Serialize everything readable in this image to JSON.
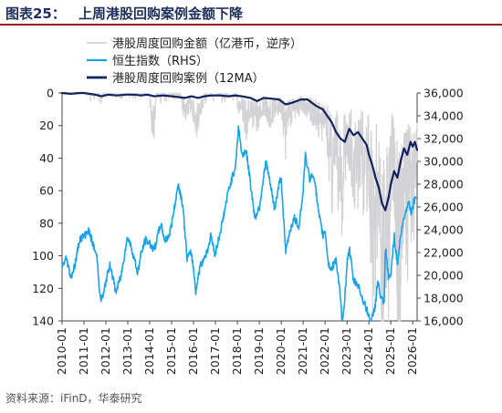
{
  "header": {
    "label": "图表25：",
    "title": "上周港股回购案例金额下降"
  },
  "source": "资料来源：iFinD，华泰研究",
  "colors": {
    "buyback": "#d3d3d6",
    "hsi": "#1aa3e8",
    "ma": "#12225e",
    "title_rule": "#9a1d23"
  },
  "chart_data": {
    "type": "line",
    "title": "上周港股回购案例金额下降",
    "legend": [
      "港股周度回购金额（亿港币，逆序）",
      "恒生指数（RHS）",
      "港股周度回购案例（12MA）"
    ],
    "legend_position": "top-right",
    "x_ticks": [
      "2010-01",
      "2011-01",
      "2012-01",
      "2013-01",
      "2014-01",
      "2015-01",
      "2016-01",
      "2017-01",
      "2018-01",
      "2019-01",
      "2020-01",
      "2021-01",
      "2022-01",
      "2023-01",
      "2024-01",
      "2025-01",
      "2026-01"
    ],
    "y_left": {
      "ticks": [
        0,
        20,
        40,
        60,
        80,
        100,
        120,
        140
      ],
      "range": [
        0,
        140
      ],
      "inverted": true
    },
    "y_right": {
      "ticks": [
        "16,000",
        "18,000",
        "20,000",
        "22,000",
        "24,000",
        "26,000",
        "28,000",
        "30,000",
        "32,000",
        "34,000",
        "36,000"
      ],
      "range": [
        16000,
        36000
      ]
    },
    "x_range": [
      2010.0,
      2026.2
    ],
    "series": [
      {
        "name": "港股周度回购金额（亿港币，逆序）",
        "axis": "left",
        "style": "spiky",
        "points": [
          [
            2010.0,
            0
          ],
          [
            2010.5,
            0
          ],
          [
            2011.0,
            0
          ],
          [
            2011.3,
            3
          ],
          [
            2011.6,
            2
          ],
          [
            2011.9,
            5
          ],
          [
            2012.2,
            2
          ],
          [
            2012.5,
            3
          ],
          [
            2012.8,
            2
          ],
          [
            2013.2,
            2
          ],
          [
            2013.5,
            3
          ],
          [
            2013.8,
            2
          ],
          [
            2014.0,
            5
          ],
          [
            2014.15,
            20
          ],
          [
            2014.3,
            4
          ],
          [
            2014.7,
            3
          ],
          [
            2015.0,
            3
          ],
          [
            2015.3,
            2
          ],
          [
            2015.5,
            8
          ],
          [
            2015.65,
            12
          ],
          [
            2015.8,
            6
          ],
          [
            2016.0,
            10
          ],
          [
            2016.1,
            18
          ],
          [
            2016.3,
            8
          ],
          [
            2016.6,
            4
          ],
          [
            2017.0,
            4
          ],
          [
            2017.4,
            3
          ],
          [
            2017.8,
            4
          ],
          [
            2018.0,
            6
          ],
          [
            2018.2,
            8
          ],
          [
            2018.4,
            16
          ],
          [
            2018.6,
            9
          ],
          [
            2018.8,
            14
          ],
          [
            2019.0,
            12
          ],
          [
            2019.2,
            7
          ],
          [
            2019.5,
            12
          ],
          [
            2019.8,
            7
          ],
          [
            2020.0,
            8
          ],
          [
            2020.2,
            22
          ],
          [
            2020.35,
            12
          ],
          [
            2020.6,
            9
          ],
          [
            2021.0,
            6
          ],
          [
            2021.3,
            10
          ],
          [
            2021.6,
            12
          ],
          [
            2021.8,
            18
          ],
          [
            2022.0,
            16
          ],
          [
            2022.2,
            30
          ],
          [
            2022.3,
            42
          ],
          [
            2022.45,
            24
          ],
          [
            2022.6,
            38
          ],
          [
            2022.75,
            52
          ],
          [
            2022.9,
            30
          ],
          [
            2023.0,
            26
          ],
          [
            2023.2,
            34
          ],
          [
            2023.4,
            50
          ],
          [
            2023.6,
            30
          ],
          [
            2023.8,
            44
          ],
          [
            2024.0,
            36
          ],
          [
            2024.1,
            62
          ],
          [
            2024.25,
            92
          ],
          [
            2024.35,
            50
          ],
          [
            2024.5,
            78
          ],
          [
            2024.6,
            128
          ],
          [
            2024.75,
            66
          ],
          [
            2024.9,
            82
          ],
          [
            2025.0,
            48
          ],
          [
            2025.1,
            34
          ],
          [
            2025.25,
            60
          ],
          [
            2025.4,
            108
          ],
          [
            2025.55,
            52
          ],
          [
            2025.7,
            84
          ],
          [
            2025.85,
            46
          ],
          [
            2026.0,
            62
          ],
          [
            2026.1,
            38
          ],
          [
            2026.2,
            22
          ]
        ]
      },
      {
        "name": "恒生指数（RHS）",
        "axis": "right",
        "style": "noisy",
        "points": [
          [
            2010.0,
            20800
          ],
          [
            2010.2,
            21500
          ],
          [
            2010.4,
            19800
          ],
          [
            2010.6,
            21000
          ],
          [
            2010.8,
            23200
          ],
          [
            2011.0,
            23400
          ],
          [
            2011.2,
            24000
          ],
          [
            2011.4,
            22800
          ],
          [
            2011.6,
            21500
          ],
          [
            2011.75,
            17800
          ],
          [
            2011.9,
            18300
          ],
          [
            2012.0,
            19500
          ],
          [
            2012.2,
            21000
          ],
          [
            2012.45,
            18500
          ],
          [
            2012.7,
            20000
          ],
          [
            2012.9,
            22500
          ],
          [
            2013.0,
            23400
          ],
          [
            2013.2,
            22200
          ],
          [
            2013.45,
            20200
          ],
          [
            2013.6,
            21800
          ],
          [
            2013.8,
            23100
          ],
          [
            2014.0,
            22800
          ],
          [
            2014.2,
            22200
          ],
          [
            2014.5,
            24500
          ],
          [
            2014.7,
            23000
          ],
          [
            2014.9,
            23600
          ],
          [
            2015.0,
            24500
          ],
          [
            2015.3,
            28000
          ],
          [
            2015.5,
            26300
          ],
          [
            2015.7,
            21500
          ],
          [
            2015.9,
            22000
          ],
          [
            2016.0,
            20500
          ],
          [
            2016.1,
            18600
          ],
          [
            2016.3,
            20800
          ],
          [
            2016.6,
            22000
          ],
          [
            2016.8,
            23500
          ],
          [
            2016.95,
            22000
          ],
          [
            2017.0,
            22000
          ],
          [
            2017.3,
            24500
          ],
          [
            2017.6,
            27500
          ],
          [
            2017.9,
            29500
          ],
          [
            2018.0,
            31500
          ],
          [
            2018.05,
            33200
          ],
          [
            2018.2,
            30500
          ],
          [
            2018.4,
            31000
          ],
          [
            2018.6,
            28000
          ],
          [
            2018.8,
            25000
          ],
          [
            2018.95,
            25800
          ],
          [
            2019.0,
            26000
          ],
          [
            2019.3,
            30000
          ],
          [
            2019.5,
            28000
          ],
          [
            2019.7,
            25800
          ],
          [
            2019.9,
            28000
          ],
          [
            2020.0,
            28500
          ],
          [
            2020.2,
            22000
          ],
          [
            2020.4,
            24000
          ],
          [
            2020.6,
            25000
          ],
          [
            2020.8,
            24300
          ],
          [
            2020.95,
            26500
          ],
          [
            2021.0,
            27500
          ],
          [
            2021.1,
            30500
          ],
          [
            2021.3,
            28500
          ],
          [
            2021.5,
            28800
          ],
          [
            2021.7,
            25500
          ],
          [
            2021.9,
            23500
          ],
          [
            2022.0,
            24000
          ],
          [
            2022.15,
            21000
          ],
          [
            2022.3,
            20500
          ],
          [
            2022.5,
            21500
          ],
          [
            2022.7,
            18000
          ],
          [
            2022.8,
            15500
          ],
          [
            2022.95,
            19500
          ],
          [
            2023.0,
            21000
          ],
          [
            2023.1,
            22500
          ],
          [
            2023.3,
            19500
          ],
          [
            2023.5,
            19200
          ],
          [
            2023.7,
            18000
          ],
          [
            2023.9,
            17000
          ],
          [
            2024.0,
            16400
          ],
          [
            2024.1,
            15800
          ],
          [
            2024.3,
            17500
          ],
          [
            2024.4,
            19500
          ],
          [
            2024.55,
            18000
          ],
          [
            2024.7,
            17500
          ],
          [
            2024.75,
            22500
          ],
          [
            2024.9,
            19700
          ],
          [
            2025.0,
            20000
          ],
          [
            2025.15,
            23500
          ],
          [
            2025.3,
            21000
          ],
          [
            2025.45,
            23500
          ],
          [
            2025.6,
            25000
          ],
          [
            2025.8,
            26500
          ],
          [
            2025.95,
            25500
          ],
          [
            2026.05,
            26500
          ],
          [
            2026.15,
            27000
          ]
        ]
      },
      {
        "name": "港股周度回购案例（12MA）",
        "axis": "left",
        "style": "smooth",
        "points": [
          [
            2010.0,
            0
          ],
          [
            2010.4,
            0.5
          ],
          [
            2010.8,
            0
          ],
          [
            2011.0,
            0
          ],
          [
            2011.5,
            1
          ],
          [
            2011.8,
            2
          ],
          [
            2012.1,
            1
          ],
          [
            2012.5,
            1.5
          ],
          [
            2012.9,
            1
          ],
          [
            2013.3,
            1
          ],
          [
            2013.6,
            1.5
          ],
          [
            2013.9,
            1
          ],
          [
            2014.2,
            2
          ],
          [
            2014.6,
            1.5
          ],
          [
            2015.0,
            2
          ],
          [
            2015.3,
            2.5
          ],
          [
            2015.6,
            3
          ],
          [
            2015.9,
            2
          ],
          [
            2016.2,
            3
          ],
          [
            2016.5,
            2
          ],
          [
            2016.8,
            1.5
          ],
          [
            2017.2,
            1.5
          ],
          [
            2017.6,
            2
          ],
          [
            2017.9,
            1.5
          ],
          [
            2018.2,
            2
          ],
          [
            2018.6,
            3
          ],
          [
            2018.9,
            5
          ],
          [
            2019.2,
            3
          ],
          [
            2019.6,
            3.5
          ],
          [
            2019.9,
            4
          ],
          [
            2020.2,
            7
          ],
          [
            2020.5,
            6
          ],
          [
            2020.9,
            4
          ],
          [
            2021.2,
            4
          ],
          [
            2021.6,
            8
          ],
          [
            2021.9,
            10
          ],
          [
            2022.1,
            14
          ],
          [
            2022.3,
            18
          ],
          [
            2022.5,
            24
          ],
          [
            2022.7,
            28
          ],
          [
            2022.9,
            30
          ],
          [
            2023.1,
            22
          ],
          [
            2023.3,
            26
          ],
          [
            2023.5,
            24
          ],
          [
            2023.7,
            28
          ],
          [
            2023.9,
            32
          ],
          [
            2024.0,
            38
          ],
          [
            2024.15,
            44
          ],
          [
            2024.3,
            52
          ],
          [
            2024.45,
            58
          ],
          [
            2024.6,
            68
          ],
          [
            2024.75,
            72
          ],
          [
            2024.9,
            64
          ],
          [
            2025.0,
            56
          ],
          [
            2025.15,
            48
          ],
          [
            2025.3,
            52
          ],
          [
            2025.45,
            42
          ],
          [
            2025.6,
            34
          ],
          [
            2025.75,
            38
          ],
          [
            2025.9,
            30
          ],
          [
            2026.0,
            33
          ],
          [
            2026.1,
            30
          ],
          [
            2026.2,
            35
          ]
        ]
      }
    ]
  }
}
